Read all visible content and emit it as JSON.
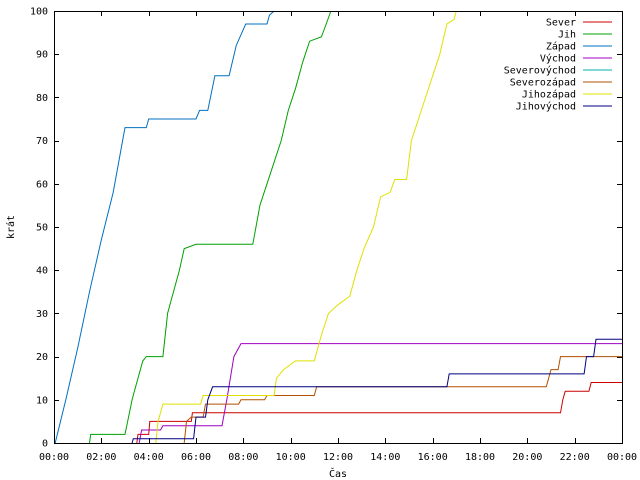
{
  "chart_data": {
    "type": "line",
    "xlabel": "Čas",
    "ylabel": "krát",
    "xlim": [
      0,
      24
    ],
    "ylim": [
      0,
      100
    ],
    "x_ticks": [
      {
        "v": 0,
        "label": "00:00"
      },
      {
        "v": 2,
        "label": "02:00"
      },
      {
        "v": 4,
        "label": "04:00"
      },
      {
        "v": 6,
        "label": "06:00"
      },
      {
        "v": 8,
        "label": "08:00"
      },
      {
        "v": 10,
        "label": "10:00"
      },
      {
        "v": 12,
        "label": "12:00"
      },
      {
        "v": 14,
        "label": "14:00"
      },
      {
        "v": 16,
        "label": "16:00"
      },
      {
        "v": 18,
        "label": "18:00"
      },
      {
        "v": 20,
        "label": "20:00"
      },
      {
        "v": 22,
        "label": "22:00"
      },
      {
        "v": 24,
        "label": "00:00"
      }
    ],
    "y_ticks": [
      {
        "v": 0,
        "label": "0"
      },
      {
        "v": 10,
        "label": "10"
      },
      {
        "v": 20,
        "label": "20"
      },
      {
        "v": 30,
        "label": "30"
      },
      {
        "v": 40,
        "label": "40"
      },
      {
        "v": 50,
        "label": "50"
      },
      {
        "v": 60,
        "label": "60"
      },
      {
        "v": 70,
        "label": "70"
      },
      {
        "v": 80,
        "label": "80"
      },
      {
        "v": 90,
        "label": "90"
      },
      {
        "v": 100,
        "label": "100"
      }
    ],
    "legend_position": "top-right",
    "grid": false,
    "series": [
      {
        "name": "Sever",
        "color": "#cc0000",
        "points": [
          [
            3.5,
            0
          ],
          [
            3.55,
            2
          ],
          [
            4.0,
            2
          ],
          [
            4.05,
            5
          ],
          [
            5.8,
            5
          ],
          [
            5.85,
            7
          ],
          [
            21.4,
            7
          ],
          [
            21.5,
            10
          ],
          [
            21.6,
            12
          ],
          [
            22.6,
            12
          ],
          [
            22.7,
            14
          ],
          [
            24,
            14
          ]
        ]
      },
      {
        "name": "Jih",
        "color": "#00a000",
        "points": [
          [
            1.5,
            0
          ],
          [
            1.55,
            2
          ],
          [
            3.0,
            2
          ],
          [
            3.3,
            10
          ],
          [
            3.5,
            14
          ],
          [
            3.75,
            19
          ],
          [
            3.9,
            20
          ],
          [
            4.6,
            20
          ],
          [
            4.8,
            30
          ],
          [
            5.0,
            34
          ],
          [
            5.3,
            40
          ],
          [
            5.5,
            45
          ],
          [
            6.0,
            46
          ],
          [
            8.4,
            46
          ],
          [
            8.7,
            55
          ],
          [
            9.0,
            60
          ],
          [
            9.3,
            65
          ],
          [
            9.6,
            70
          ],
          [
            9.9,
            77
          ],
          [
            10.2,
            82
          ],
          [
            10.5,
            88
          ],
          [
            10.8,
            93
          ],
          [
            11.3,
            94
          ],
          [
            11.5,
            97
          ],
          [
            11.7,
            100
          ]
        ]
      },
      {
        "name": "Západ",
        "color": "#0070c0",
        "points": [
          [
            0.05,
            0
          ],
          [
            0.5,
            10
          ],
          [
            1.0,
            22
          ],
          [
            1.5,
            35
          ],
          [
            2.0,
            47
          ],
          [
            2.5,
            58
          ],
          [
            2.9,
            70
          ],
          [
            3.0,
            73
          ],
          [
            3.9,
            73
          ],
          [
            4.0,
            75
          ],
          [
            6.0,
            75
          ],
          [
            6.15,
            77
          ],
          [
            6.5,
            77
          ],
          [
            6.8,
            85
          ],
          [
            7.4,
            85
          ],
          [
            7.7,
            92
          ],
          [
            8.1,
            97
          ],
          [
            9.0,
            97
          ],
          [
            9.1,
            99
          ],
          [
            9.3,
            100
          ]
        ]
      },
      {
        "name": "Východ",
        "color": "#a000c0",
        "points": [
          [
            3.6,
            0
          ],
          [
            3.7,
            3
          ],
          [
            4.5,
            3
          ],
          [
            4.6,
            4
          ],
          [
            7.1,
            4
          ],
          [
            7.3,
            10
          ],
          [
            7.6,
            20
          ],
          [
            7.9,
            23
          ],
          [
            24,
            23
          ]
        ]
      },
      {
        "name": "Severovýchod",
        "color": "#00b0b0",
        "points": []
      },
      {
        "name": "Severozápad",
        "color": "#b05000",
        "points": [
          [
            5.5,
            0
          ],
          [
            5.6,
            5
          ],
          [
            5.8,
            6
          ],
          [
            6.3,
            6
          ],
          [
            6.4,
            9
          ],
          [
            7.8,
            9
          ],
          [
            7.9,
            10
          ],
          [
            8.9,
            10
          ],
          [
            9.0,
            11
          ],
          [
            11.0,
            11
          ],
          [
            11.1,
            13
          ],
          [
            20.8,
            13
          ],
          [
            21.0,
            17
          ],
          [
            21.3,
            17
          ],
          [
            21.4,
            20
          ],
          [
            24,
            20
          ]
        ]
      },
      {
        "name": "Jihozápad",
        "color": "#e0e000",
        "points": [
          [
            4.3,
            0
          ],
          [
            4.4,
            5
          ],
          [
            4.55,
            8
          ],
          [
            4.6,
            9
          ],
          [
            6.2,
            9
          ],
          [
            6.3,
            11
          ],
          [
            7.5,
            11
          ],
          [
            9.3,
            11
          ],
          [
            9.4,
            15
          ],
          [
            9.7,
            17
          ],
          [
            10.2,
            19
          ],
          [
            11.0,
            19
          ],
          [
            11.3,
            25
          ],
          [
            11.6,
            30
          ],
          [
            12.0,
            32
          ],
          [
            12.5,
            34
          ],
          [
            12.8,
            40
          ],
          [
            13.1,
            45
          ],
          [
            13.5,
            50
          ],
          [
            13.8,
            57
          ],
          [
            14.2,
            58
          ],
          [
            14.4,
            61
          ],
          [
            14.9,
            61
          ],
          [
            15.1,
            70
          ],
          [
            15.4,
            75
          ],
          [
            15.7,
            80
          ],
          [
            16.0,
            85
          ],
          [
            16.3,
            90
          ],
          [
            16.6,
            97
          ],
          [
            16.9,
            98
          ],
          [
            17.0,
            100
          ]
        ]
      },
      {
        "name": "Jihovýchod",
        "color": "#000080",
        "points": [
          [
            3.3,
            0
          ],
          [
            3.35,
            1
          ],
          [
            5.9,
            1
          ],
          [
            6.0,
            6
          ],
          [
            6.4,
            6
          ],
          [
            6.5,
            10
          ],
          [
            6.7,
            13
          ],
          [
            16.6,
            13
          ],
          [
            16.7,
            16
          ],
          [
            22.4,
            16
          ],
          [
            22.5,
            20
          ],
          [
            22.8,
            20
          ],
          [
            22.9,
            24
          ],
          [
            24,
            24
          ]
        ]
      }
    ]
  }
}
